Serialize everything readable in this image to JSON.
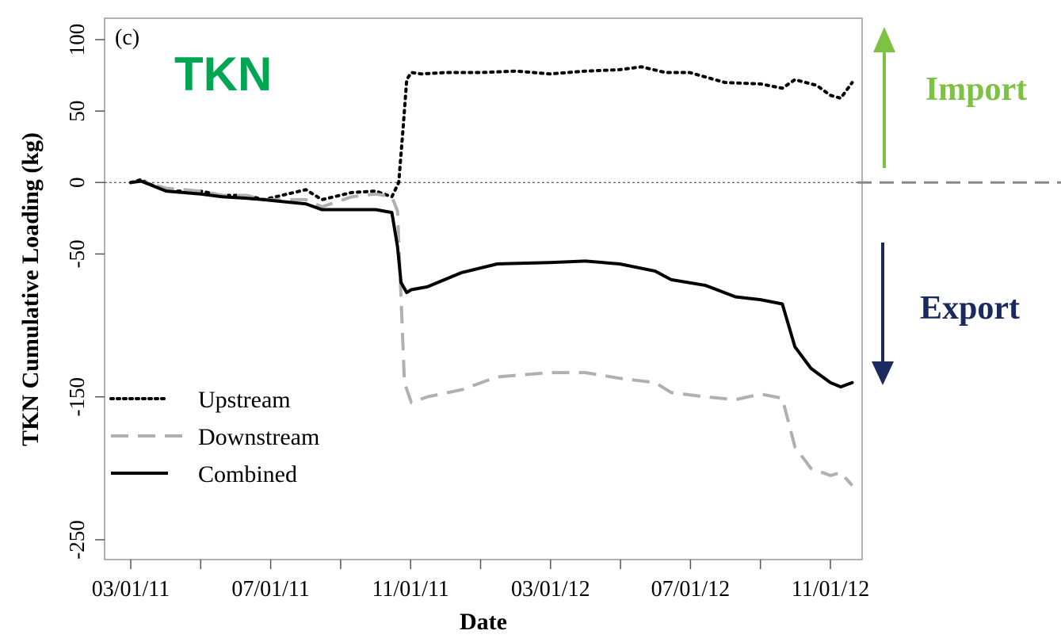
{
  "chart_data": {
    "type": "line",
    "panel_label": "(c)",
    "title": "TKN",
    "xlabel": "Date",
    "ylabel": "TKN Cumulative Loading (kg)",
    "ylim": [
      -260,
      100
    ],
    "yticks": [
      100,
      50,
      0,
      -50,
      -150,
      -250
    ],
    "xticks": [
      "03/01/11",
      "07/01/11",
      "11/01/11",
      "03/01/12",
      "07/01/12",
      "11/01/12"
    ],
    "grid": false,
    "legend_placement": "bottom-left",
    "reference_line": 0,
    "annotations": {
      "import_label": "Import",
      "export_label": "Export",
      "import_color": "#7dc242",
      "export_color": "#1b2a5e",
      "title_color": "#00a651"
    },
    "series": [
      {
        "name": "Upstream",
        "style": "dotted",
        "color": "#000000",
        "points": [
          [
            "2011-03-01",
            0
          ],
          [
            "2011-03-10",
            2
          ],
          [
            "2011-03-20",
            -2
          ],
          [
            "2011-04-01",
            -6
          ],
          [
            "2011-05-01",
            -6
          ],
          [
            "2011-05-20",
            -9
          ],
          [
            "2011-06-10",
            -9
          ],
          [
            "2011-06-25",
            -12
          ],
          [
            "2011-08-01",
            -5
          ],
          [
            "2011-08-15",
            -12
          ],
          [
            "2011-09-10",
            -7
          ],
          [
            "2011-10-01",
            -6
          ],
          [
            "2011-10-15",
            -10
          ],
          [
            "2011-10-21",
            0
          ],
          [
            "2011-10-25",
            40
          ],
          [
            "2011-10-28",
            72
          ],
          [
            "2011-11-01",
            77
          ],
          [
            "2011-11-10",
            76
          ],
          [
            "2011-12-01",
            77
          ],
          [
            "2012-01-01",
            77
          ],
          [
            "2012-02-01",
            78
          ],
          [
            "2012-03-01",
            76
          ],
          [
            "2012-04-01",
            78
          ],
          [
            "2012-05-01",
            79
          ],
          [
            "2012-05-20",
            81
          ],
          [
            "2012-06-10",
            77
          ],
          [
            "2012-07-01",
            77
          ],
          [
            "2012-08-01",
            70
          ],
          [
            "2012-09-01",
            69
          ],
          [
            "2012-09-20",
            66
          ],
          [
            "2012-10-01",
            72
          ],
          [
            "2012-10-20",
            68
          ],
          [
            "2012-11-01",
            61
          ],
          [
            "2012-11-10",
            59
          ],
          [
            "2012-11-20",
            70
          ]
        ]
      },
      {
        "name": "Downstream",
        "style": "dashed",
        "color": "#b0b0b0",
        "points": [
          [
            "2011-03-01",
            0
          ],
          [
            "2011-03-10",
            1
          ],
          [
            "2011-04-01",
            -4
          ],
          [
            "2011-05-01",
            -6
          ],
          [
            "2011-05-20",
            -9
          ],
          [
            "2011-06-10",
            -9
          ],
          [
            "2011-06-25",
            -12
          ],
          [
            "2011-08-01",
            -12
          ],
          [
            "2011-08-15",
            -17
          ],
          [
            "2011-09-10",
            -10
          ],
          [
            "2011-10-01",
            -8
          ],
          [
            "2011-10-15",
            -10
          ],
          [
            "2011-10-20",
            -20
          ],
          [
            "2011-10-23",
            -80
          ],
          [
            "2011-10-26",
            -140
          ],
          [
            "2011-11-01",
            -154
          ],
          [
            "2011-11-15",
            -150
          ],
          [
            "2011-12-15",
            -145
          ],
          [
            "2012-01-15",
            -136
          ],
          [
            "2012-03-01",
            -133
          ],
          [
            "2012-04-01",
            -133
          ],
          [
            "2012-05-01",
            -137
          ],
          [
            "2012-06-01",
            -140
          ],
          [
            "2012-06-15",
            -147
          ],
          [
            "2012-07-15",
            -150
          ],
          [
            "2012-08-10",
            -152
          ],
          [
            "2012-09-01",
            -148
          ],
          [
            "2012-09-20",
            -151
          ],
          [
            "2012-10-01",
            -185
          ],
          [
            "2012-10-15",
            -200
          ],
          [
            "2012-11-01",
            -205
          ],
          [
            "2012-11-10",
            -203
          ],
          [
            "2012-11-20",
            -212
          ]
        ]
      },
      {
        "name": "Combined",
        "style": "solid",
        "color": "#000000",
        "points": [
          [
            "2011-03-01",
            0
          ],
          [
            "2011-03-10",
            1
          ],
          [
            "2011-04-01",
            -6
          ],
          [
            "2011-05-01",
            -8
          ],
          [
            "2011-05-20",
            -10
          ],
          [
            "2011-06-10",
            -11
          ],
          [
            "2011-06-25",
            -12
          ],
          [
            "2011-08-01",
            -15
          ],
          [
            "2011-08-15",
            -19
          ],
          [
            "2011-09-10",
            -19
          ],
          [
            "2011-10-01",
            -19
          ],
          [
            "2011-10-15",
            -21
          ],
          [
            "2011-10-20",
            -45
          ],
          [
            "2011-10-23",
            -70
          ],
          [
            "2011-10-28",
            -77
          ],
          [
            "2011-11-01",
            -75
          ],
          [
            "2011-11-15",
            -73
          ],
          [
            "2011-12-15",
            -63
          ],
          [
            "2012-01-15",
            -57
          ],
          [
            "2012-03-01",
            -56
          ],
          [
            "2012-04-01",
            -55
          ],
          [
            "2012-05-01",
            -57
          ],
          [
            "2012-06-01",
            -62
          ],
          [
            "2012-06-15",
            -68
          ],
          [
            "2012-07-15",
            -72
          ],
          [
            "2012-08-10",
            -80
          ],
          [
            "2012-09-01",
            -82
          ],
          [
            "2012-09-20",
            -85
          ],
          [
            "2012-10-01",
            -115
          ],
          [
            "2012-10-15",
            -130
          ],
          [
            "2012-11-01",
            -140
          ],
          [
            "2012-11-10",
            -143
          ],
          [
            "2012-11-20",
            -140
          ]
        ]
      }
    ]
  }
}
